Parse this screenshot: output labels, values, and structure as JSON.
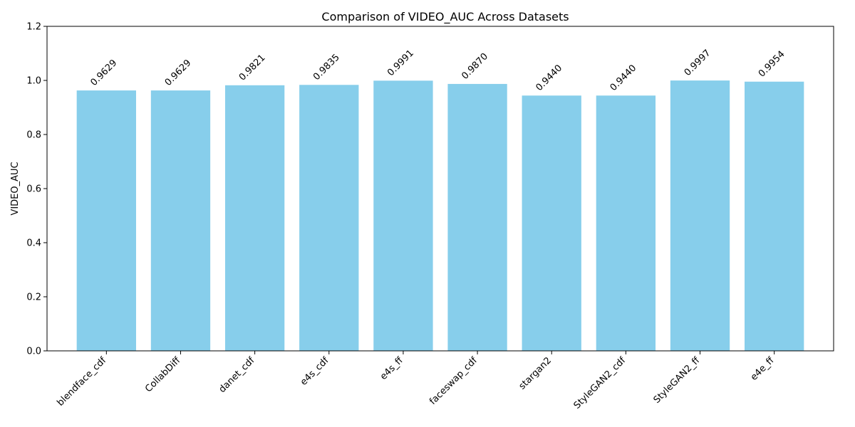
{
  "chart_data": {
    "type": "bar",
    "title": "Comparison of VIDEO_AUC Across Datasets",
    "xlabel": "",
    "ylabel": "VIDEO_AUC",
    "categories": [
      "blendface_cdf",
      "CollabDiff",
      "danet_cdf",
      "e4s_cdf",
      "e4s_ff",
      "faceswap_cdf",
      "stargan2",
      "StyleGAN2_cdf",
      "StyleGAN2_ff",
      "e4e_ff"
    ],
    "values": [
      0.9629,
      0.9629,
      0.9821,
      0.9835,
      0.9991,
      0.987,
      0.944,
      0.944,
      0.9997,
      0.9954
    ],
    "data_labels": [
      "0.9629",
      "0.9629",
      "0.9821",
      "0.9835",
      "0.9991",
      "0.9870",
      "0.9440",
      "0.9440",
      "0.9997",
      "0.9954"
    ],
    "ylim": [
      0,
      1.2
    ],
    "yticks": [
      "0.0",
      "0.2",
      "0.4",
      "0.6",
      "0.8",
      "1.0",
      "1.2"
    ],
    "bar_color": "#87ceeb",
    "grid": false,
    "legend": false
  }
}
